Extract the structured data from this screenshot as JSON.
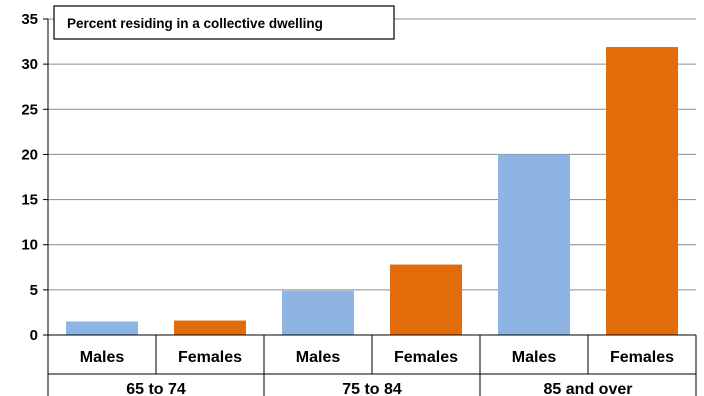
{
  "chart_data": {
    "type": "bar",
    "title": "Percent residing in a collective dwelling",
    "groups": [
      "65 to 74",
      "75 to 84",
      "85 and over"
    ],
    "categories": [
      "Males",
      "Females",
      "Males",
      "Females",
      "Males",
      "Females"
    ],
    "values": [
      1.5,
      1.6,
      4.9,
      7.8,
      20.0,
      31.9
    ],
    "bar_colors": [
      "#8db4e2",
      "#e36c0a",
      "#8db4e2",
      "#e36c0a",
      "#8db4e2",
      "#e36c0a"
    ],
    "ylim": [
      0,
      35
    ],
    "yticks": [
      0,
      5,
      10,
      15,
      20,
      25,
      30,
      35
    ],
    "grid": true,
    "title_placement": "top-left"
  }
}
